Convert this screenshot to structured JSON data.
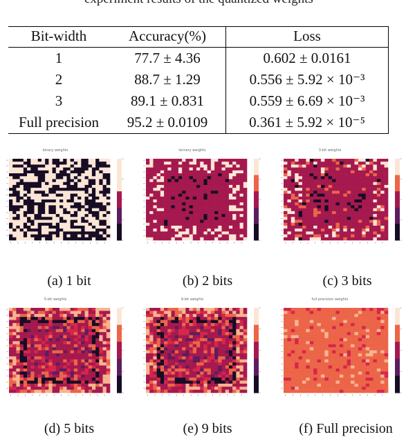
{
  "top_text": "experiment results of the quantized weights",
  "table": {
    "headers": [
      "Bit-width",
      "Accuracy(%)",
      "Loss"
    ],
    "rows": [
      [
        "1",
        "77.7 ± 4.36",
        "0.602 ± 0.0161"
      ],
      [
        "2",
        "88.7 ± 1.29",
        "0.556 ± 5.92 × 10⁻³"
      ],
      [
        "3",
        "89.1 ± 0.831",
        "0.559 ± 6.69 × 10⁻³"
      ],
      [
        "Full precision",
        "95.2 ± 0.0109",
        "0.361 ± 5.92 × 10⁻⁵"
      ]
    ]
  },
  "panels": [
    {
      "title": "binary weights",
      "caption": "(a) 1 bit",
      "style": "binary"
    },
    {
      "title": "ternary weights",
      "caption": "(b) 2 bits",
      "style": "ternary"
    },
    {
      "title": "3-bit weights",
      "caption": "(c) 3 bits",
      "style": "q3"
    },
    {
      "title": "5-bit weights",
      "caption": "(d) 5 bits",
      "style": "q5"
    },
    {
      "title": "9-bit weights",
      "caption": "(e) 9 bits",
      "style": "q9"
    },
    {
      "title": "full precision weights",
      "caption": "(f) Full precision",
      "style": "full"
    }
  ],
  "colors": {
    "dark": "#170c24",
    "purple": "#5d1d5e",
    "magenta": "#a5194e",
    "crimson": "#d6264a",
    "orange": "#ec6548",
    "peach": "#f6b48f",
    "cream": "#fbe6d6"
  }
}
